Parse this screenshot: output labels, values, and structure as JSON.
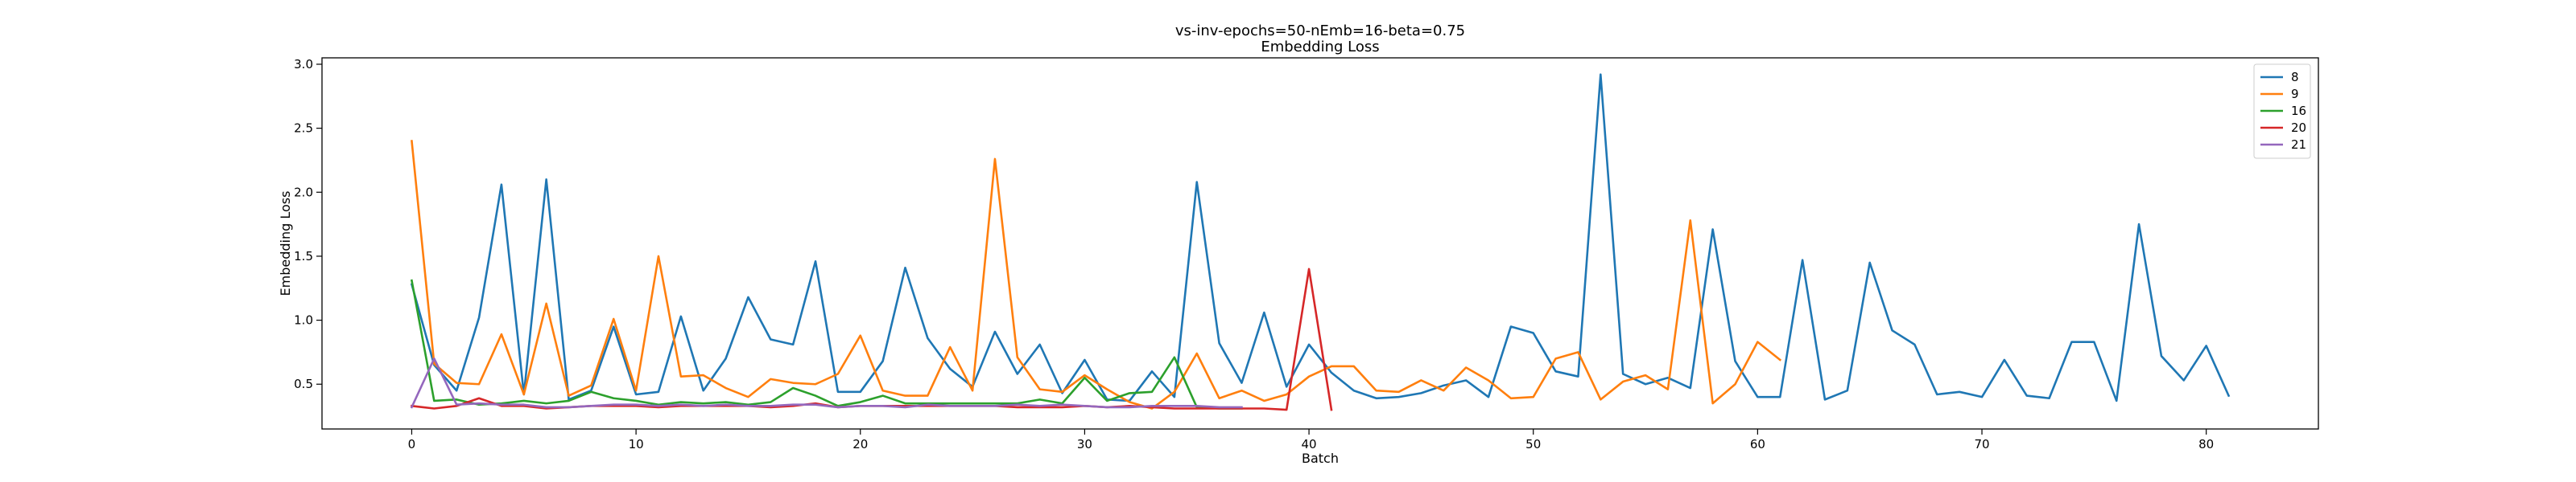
{
  "chart_data": {
    "type": "line",
    "title": "vs-inv-epochs=50-nEmb=16-beta=0.75",
    "subtitle": "Embedding Loss",
    "xlabel": "Batch",
    "ylabel": "Embedding Loss",
    "xlim": [
      -4,
      85
    ],
    "ylim": [
      0.15,
      3.05
    ],
    "xticks": [
      0,
      10,
      20,
      30,
      40,
      50,
      60,
      70,
      80
    ],
    "yticks": [
      0.5,
      1.0,
      1.5,
      2.0,
      2.5,
      3.0
    ],
    "ytick_labels": [
      "0.5",
      "1.0",
      "1.5",
      "2.0",
      "2.5",
      "3.0"
    ],
    "grid": false,
    "legend": "top-right",
    "series": [
      {
        "name": "8",
        "color": "#1f77b4",
        "values": [
          1.28,
          0.65,
          0.45,
          1.02,
          2.06,
          0.42,
          2.1,
          0.38,
          0.45,
          0.95,
          0.42,
          0.44,
          1.03,
          0.45,
          0.7,
          1.18,
          0.85,
          0.81,
          1.46,
          0.44,
          0.44,
          0.68,
          1.41,
          0.86,
          0.62,
          0.48,
          0.91,
          0.58,
          0.81,
          0.43,
          0.69,
          0.38,
          0.37,
          0.6,
          0.4,
          2.08,
          0.82,
          0.51,
          1.06,
          0.48,
          0.81,
          0.59,
          0.45,
          0.39,
          0.4,
          0.43,
          0.49,
          0.53,
          0.4,
          0.95,
          0.9,
          0.6,
          0.56,
          2.92,
          0.58,
          0.5,
          0.55,
          0.47,
          1.71,
          0.68,
          0.4,
          0.4,
          1.47,
          0.38,
          0.45,
          1.45,
          0.92,
          0.81,
          0.42,
          0.44,
          0.4,
          0.69,
          0.41,
          0.39,
          0.83,
          0.83,
          0.37,
          1.75,
          0.72,
          0.53,
          0.8,
          0.41
        ]
      },
      {
        "name": "9",
        "color": "#ff7f0e",
        "values": [
          2.4,
          0.66,
          0.51,
          0.5,
          0.89,
          0.42,
          1.13,
          0.41,
          0.49,
          1.01,
          0.45,
          1.5,
          0.56,
          0.57,
          0.47,
          0.4,
          0.54,
          0.51,
          0.5,
          0.58,
          0.88,
          0.45,
          0.41,
          0.41,
          0.79,
          0.45,
          2.26,
          0.71,
          0.46,
          0.44,
          0.57,
          0.46,
          0.36,
          0.31,
          0.44,
          0.74,
          0.39,
          0.45,
          0.37,
          0.42,
          0.56,
          0.64,
          0.64,
          0.45,
          0.44,
          0.53,
          0.45,
          0.63,
          0.53,
          0.39,
          0.4,
          0.7,
          0.75,
          0.38,
          0.52,
          0.57,
          0.46,
          1.78,
          0.35,
          0.5,
          0.83,
          0.69
        ]
      },
      {
        "name": "16",
        "color": "#2ca02c",
        "values": [
          1.31,
          0.37,
          0.38,
          0.34,
          0.35,
          0.37,
          0.35,
          0.37,
          0.44,
          0.39,
          0.37,
          0.34,
          0.36,
          0.35,
          0.36,
          0.34,
          0.36,
          0.47,
          0.41,
          0.33,
          0.36,
          0.41,
          0.35,
          0.35,
          0.35,
          0.35,
          0.35,
          0.35,
          0.38,
          0.35,
          0.55,
          0.37,
          0.43,
          0.44,
          0.71,
          0.32,
          0.31,
          0.31
        ]
      },
      {
        "name": "20",
        "color": "#d62728",
        "values": [
          0.33,
          0.31,
          0.33,
          0.39,
          0.33,
          0.33,
          0.31,
          0.32,
          0.33,
          0.33,
          0.33,
          0.32,
          0.33,
          0.33,
          0.33,
          0.33,
          0.32,
          0.33,
          0.35,
          0.32,
          0.33,
          0.33,
          0.33,
          0.33,
          0.33,
          0.33,
          0.33,
          0.32,
          0.32,
          0.32,
          0.33,
          0.32,
          0.33,
          0.32,
          0.31,
          0.31,
          0.31,
          0.31,
          0.31,
          0.3,
          1.4,
          0.3
        ]
      },
      {
        "name": "21",
        "color": "#9467bd",
        "values": [
          0.32,
          0.7,
          0.34,
          0.35,
          0.34,
          0.34,
          0.32,
          0.32,
          0.33,
          0.34,
          0.34,
          0.33,
          0.34,
          0.33,
          0.34,
          0.33,
          0.33,
          0.34,
          0.34,
          0.32,
          0.33,
          0.33,
          0.32,
          0.34,
          0.33,
          0.33,
          0.33,
          0.34,
          0.33,
          0.34,
          0.33,
          0.32,
          0.32,
          0.33,
          0.33,
          0.33,
          0.32,
          0.32
        ]
      }
    ]
  }
}
